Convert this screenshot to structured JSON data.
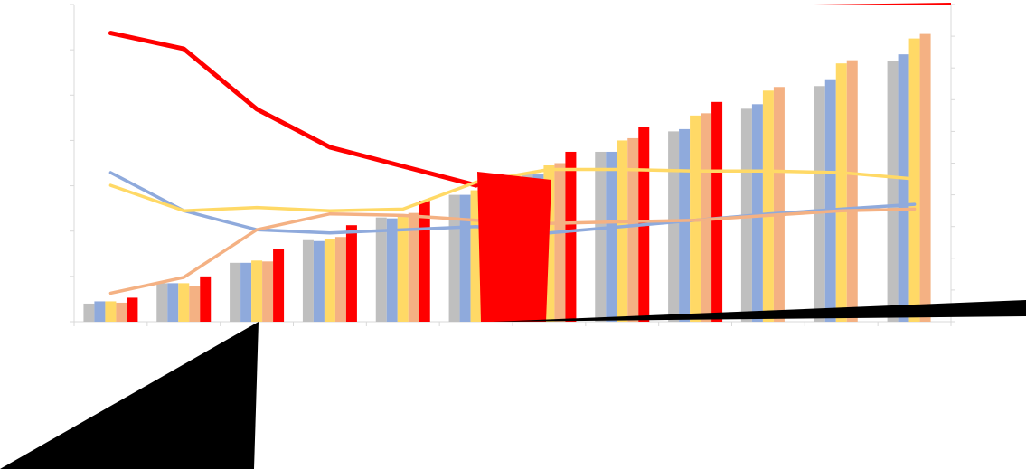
{
  "chart_data": {
    "type": "bar",
    "title": "",
    "xlabel": "",
    "ylabel": "",
    "y2label": "",
    "grid": false,
    "legend": "none",
    "y_left_range": [
      0,
      7
    ],
    "y_right_range": [
      0,
      10
    ],
    "categories": [
      "",
      "",
      "",
      "",
      "",
      "",
      "",
      "",
      "",
      "",
      "",
      ""
    ],
    "bar_series": [
      {
        "color": "#BFBFBF",
        "values": [
          0.4,
          0.85,
          1.3,
          1.8,
          2.3,
          2.8,
          3.25,
          3.75,
          4.2,
          4.7,
          5.2,
          5.75
        ]
      },
      {
        "color": "#8FAADC",
        "values": [
          0.45,
          0.85,
          1.3,
          1.78,
          2.28,
          2.8,
          3.25,
          3.75,
          4.25,
          4.8,
          5.35,
          5.9
        ]
      },
      {
        "color": "#FFD966",
        "values": [
          0.45,
          0.85,
          1.35,
          1.83,
          2.35,
          2.9,
          3.45,
          4.0,
          4.55,
          5.1,
          5.7,
          6.25
        ]
      },
      {
        "color": "#F4B183",
        "values": [
          0.42,
          0.78,
          1.33,
          1.87,
          2.4,
          2.95,
          3.5,
          4.05,
          4.6,
          5.18,
          5.77,
          6.35
        ]
      },
      {
        "color": "#FF0000",
        "values": [
          0.53,
          1.0,
          1.6,
          2.13,
          2.67,
          3.25,
          3.75,
          4.3,
          4.85,
          null,
          null,
          null
        ]
      }
    ],
    "line_series": [
      {
        "color": "#FF0000",
        "axis": "right",
        "width": 5,
        "values": [
          9.1,
          8.6,
          6.7,
          5.5,
          4.9,
          4.3,
          null,
          null,
          null,
          null,
          null,
          null
        ]
      },
      {
        "color": "#8FAADC",
        "axis": "right",
        "width": 3.5,
        "values": [
          4.7,
          3.5,
          2.9,
          2.8,
          2.9,
          3.0,
          2.8,
          3.0,
          3.2,
          3.4,
          3.55,
          3.7
        ]
      },
      {
        "color": "#FFD966",
        "axis": "right",
        "width": 3.5,
        "values": [
          4.3,
          3.5,
          3.6,
          3.5,
          3.55,
          4.4,
          4.8,
          4.8,
          4.75,
          4.75,
          4.7,
          4.5
        ]
      },
      {
        "color": "#F4B183",
        "axis": "right",
        "width": 3.5,
        "values": [
          0.9,
          1.4,
          2.9,
          3.4,
          3.35,
          3.2,
          3.1,
          3.15,
          3.2,
          3.35,
          3.5,
          3.55
        ]
      }
    ]
  },
  "overlays": [
    {
      "name": "red-block-shape",
      "color": "#FF0000"
    },
    {
      "name": "black-wedge-left",
      "color": "#000000"
    },
    {
      "name": "black-wedge-right",
      "color": "#000000"
    },
    {
      "name": "red-hairline-top",
      "color": "#FF0000"
    }
  ]
}
